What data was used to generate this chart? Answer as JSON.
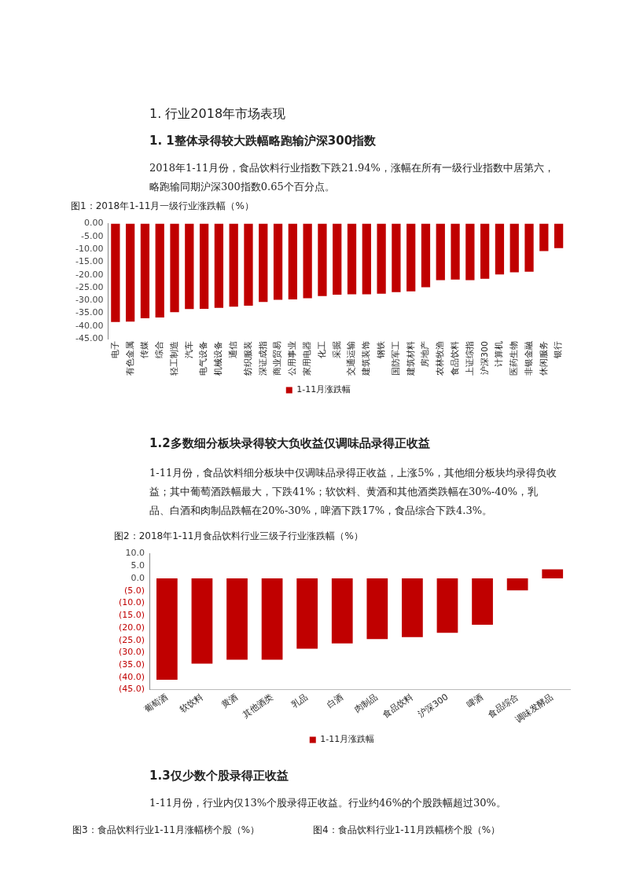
{
  "chart_data": [
    {
      "type": "bar",
      "title": "图1：2018年1-11月一级行业涨跌幅（%）",
      "annotations": [
        "1. 行业2018年市场表现",
        "1. 1整体录得较大跌幅略跑输沪深300指数",
        "2018年1-11月份，食品饮料行业指数下跌21.94%，涨幅在所有一级行业指数中居第六，略跑输同期沪深300指数0.65个百分点。"
      ],
      "categories": [
        "电子",
        "有色金属",
        "传媒",
        "综合",
        "轻工制造",
        "汽车",
        "电气设备",
        "机械设备",
        "通信",
        "纺织服装",
        "深证成指",
        "商业贸易",
        "公用事业",
        "家用电器",
        "化工",
        "采掘",
        "交通运输",
        "建筑装饰",
        "钢铁",
        "国防军工",
        "建筑材料",
        "房地产",
        "农林牧渔",
        "食品饮料",
        "上证综指",
        "沪深300",
        "计算机",
        "医药生物",
        "非银金融",
        "休闲服务",
        "银行"
      ],
      "series": [
        {
          "name": "1-11月涨跌幅",
          "color": "#c00000",
          "values": [
            -38.5,
            -38.3,
            -37.0,
            -36.7,
            -34.6,
            -33.4,
            -33.3,
            -32.9,
            -32.5,
            -32.1,
            -30.6,
            -29.8,
            -29.6,
            -29.2,
            -28.3,
            -27.8,
            -27.6,
            -27.6,
            -27.4,
            -26.8,
            -26.5,
            -24.9,
            -22.1,
            -21.9,
            -22.1,
            -21.6,
            -19.9,
            -19.0,
            -18.8,
            -10.7,
            -9.6
          ]
        }
      ],
      "ylim": [
        -45,
        0
      ],
      "yticks": [
        {
          "value": 0,
          "label": "0.00"
        },
        {
          "value": -5,
          "label": "-5.00"
        },
        {
          "value": -10,
          "label": "-10.00"
        },
        {
          "value": -15,
          "label": "-15.00"
        },
        {
          "value": -20,
          "label": "-20.00"
        },
        {
          "value": -25,
          "label": "-25.00"
        },
        {
          "value": -30,
          "label": "-30.00"
        },
        {
          "value": -35,
          "label": "-35.00"
        },
        {
          "value": -40,
          "label": "-40.00"
        },
        {
          "value": -45,
          "label": "-45.00"
        }
      ],
      "legend": "bottom"
    },
    {
      "type": "bar",
      "title": "图2：2018年1-11月食品饮料行业三级子行业涨跌幅（%）",
      "annotations": [
        "1.2多数细分板块录得较大负收益仅调味品录得正收益",
        "1-11月份，食品饮料细分板块中仅调味品录得正收益，上涨5%，其他细分板块均录得负收益；其中葡萄酒跌幅最大，下跌41%；软饮料、黄酒和其他酒类跌幅在30%-40%，乳品、白酒和肉制品跌幅在20%-30%，啤酒下跌17%，食品综合下跌4.3%。",
        "1.3仅少数个股录得正收益",
        "1-11月份，行业内仅13%个股录得正收益。行业约46%的个股跌幅超过30%。",
        "图3：食品饮料行业1-11月涨幅榜个股（%）",
        "图4：食品饮料行业1-11月跌幅榜个股（%）"
      ],
      "categories": [
        "葡萄酒",
        "软饮料",
        "黄酒",
        "其他酒类",
        "乳品",
        "白酒",
        "肉制品",
        "食品饮料",
        "沪深300",
        "啤酒",
        "食品综合",
        "调味发酵品"
      ],
      "series": [
        {
          "name": "1-11月涨跌幅",
          "color": "#c00000",
          "values": [
            -41.0,
            -34.5,
            -32.9,
            -32.9,
            -28.4,
            -26.3,
            -24.5,
            -23.7,
            -22.0,
            -18.7,
            -4.8,
            3.7
          ]
        }
      ],
      "ylim": [
        -45,
        10
      ],
      "yticks": [
        {
          "value": 10,
          "label": "10.0"
        },
        {
          "value": 5,
          "label": "5.0"
        },
        {
          "value": 0,
          "label": "0.0"
        },
        {
          "value": -5,
          "label": "(5.0)"
        },
        {
          "value": -10,
          "label": "(10.0)"
        },
        {
          "value": -15,
          "label": "(15.0)"
        },
        {
          "value": -20,
          "label": "(20.0)"
        },
        {
          "value": -25,
          "label": "(25.0)"
        },
        {
          "value": -30,
          "label": "(30.0)"
        },
        {
          "value": -35,
          "label": "(35.0)"
        },
        {
          "value": -40,
          "label": "(40.0)"
        },
        {
          "value": -45,
          "label": "(45.0)"
        }
      ],
      "legend": "bottom"
    }
  ]
}
